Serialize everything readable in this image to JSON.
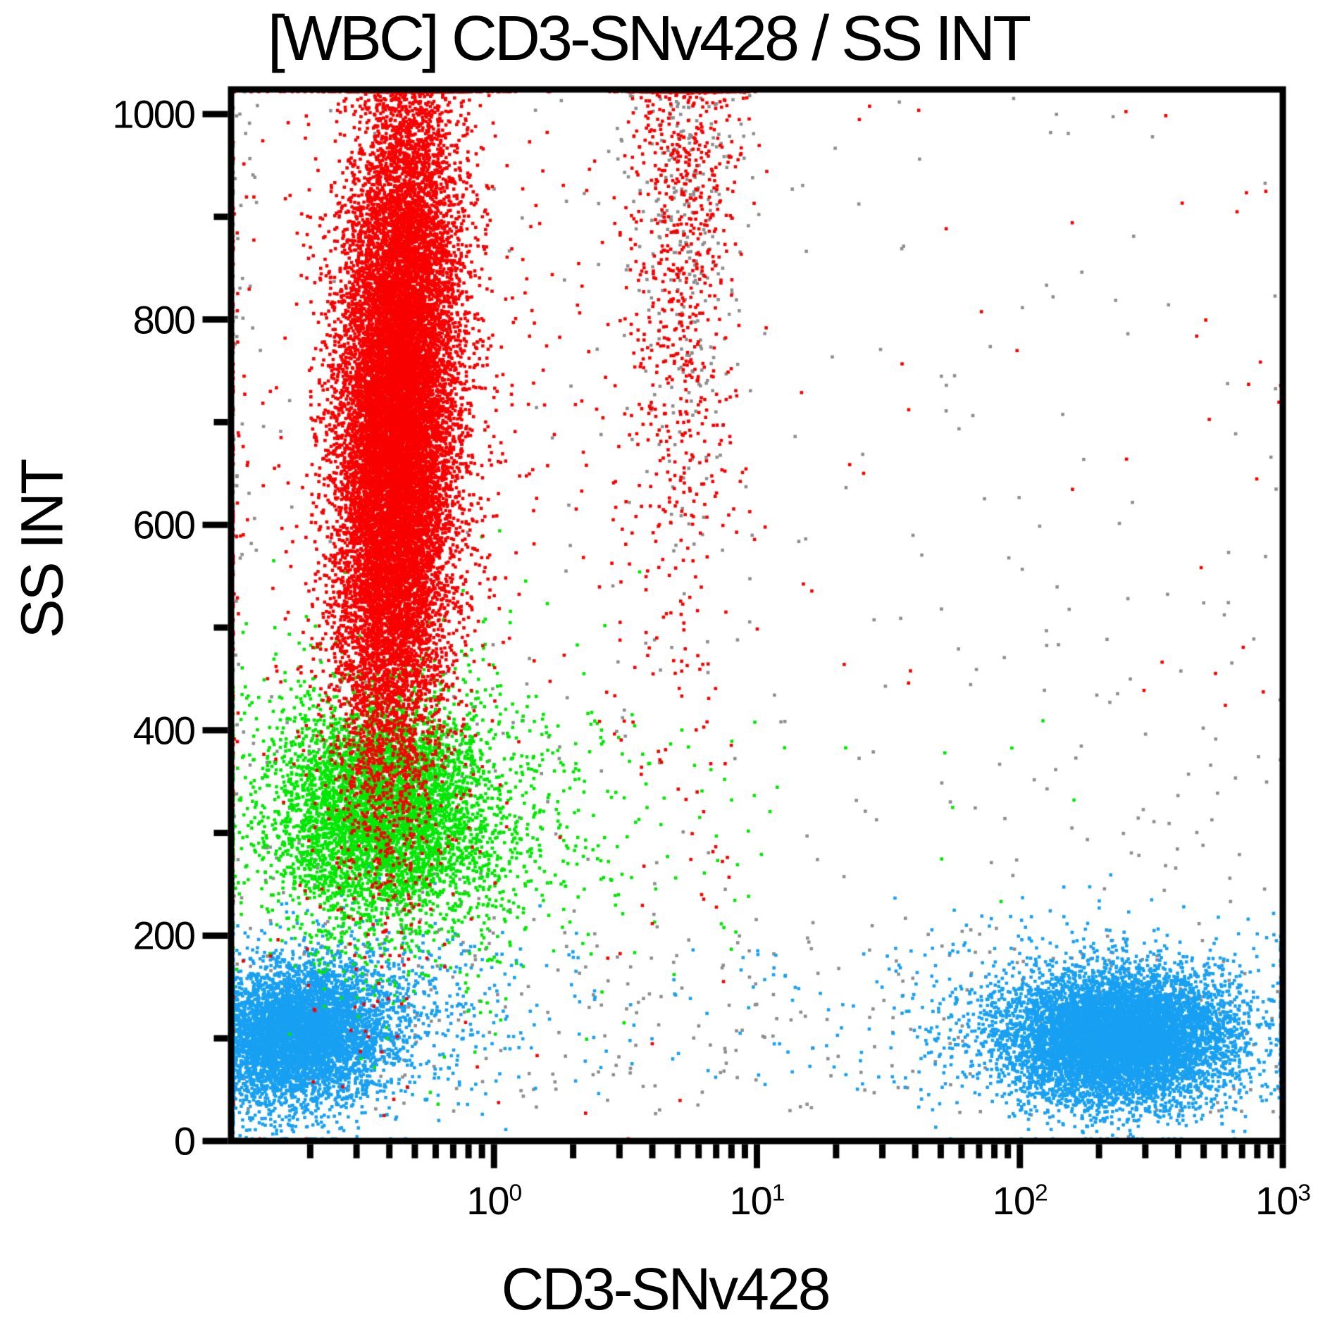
{
  "chart_data": {
    "type": "scatter",
    "title": "[WBC] CD3-SNv428 / SS INT",
    "xlabel": "CD3-SNv428",
    "ylabel": "SS INT",
    "x_scale": "log10",
    "x_range_log": [
      -1,
      3
    ],
    "y_range": [
      0,
      1024
    ],
    "grid": false,
    "legend": "none",
    "x_major_ticks": [
      {
        "log": 0,
        "base": "10",
        "exp": "0"
      },
      {
        "log": 1,
        "base": "10",
        "exp": "1"
      },
      {
        "log": 2,
        "base": "10",
        "exp": "2"
      },
      {
        "log": 3,
        "base": "10",
        "exp": "3"
      }
    ],
    "y_major_ticks": [
      {
        "value": 1000,
        "label": "1000"
      },
      {
        "value": 800,
        "label": "800"
      },
      {
        "value": 600,
        "label": "600"
      },
      {
        "value": 400,
        "label": "400"
      },
      {
        "value": 200,
        "label": "200"
      },
      {
        "value": 0,
        "label": "0"
      }
    ],
    "y_minor_tick_values": [
      100,
      300,
      500,
      700,
      900
    ],
    "colors": {
      "red": "#f80000",
      "green": "#00e800",
      "blue": "#18a0f2",
      "gray": "#8e8e8e"
    },
    "dot_size": 4.6,
    "populations": [
      {
        "name": "debris-gray-bottom-strip",
        "color": "gray",
        "kind": "uniform",
        "n": 300,
        "x_log": [
          -1.0,
          3.0
        ],
        "y": [
          25,
          210
        ]
      },
      {
        "name": "debris-gray-scatter",
        "color": "gray",
        "kind": "uniform",
        "n": 210,
        "x_log": [
          -1.0,
          3.0
        ],
        "y": [
          210,
          1020
        ]
      },
      {
        "name": "gray-left-edge-column",
        "color": "gray",
        "kind": "gauss",
        "n": 110,
        "cx": -1.02,
        "cy": 680,
        "sx": 0.05,
        "sy": 330,
        "rho": 0
      },
      {
        "name": "gray-right-trail",
        "color": "gray",
        "kind": "gauss",
        "n": 70,
        "cx": 2.45,
        "cy": 280,
        "sx": 0.28,
        "sy": 150,
        "rho": 0
      },
      {
        "name": "gray-in-monocytes",
        "color": "gray",
        "kind": "gauss",
        "n": 230,
        "cx": -0.4,
        "cy": 320,
        "sx": 0.26,
        "sy": 75,
        "rho": 0
      },
      {
        "name": "gray-upper-cd3dim",
        "color": "gray",
        "kind": "gauss",
        "n": 430,
        "cx": 0.73,
        "cy": 950,
        "sx": 0.105,
        "sy": 175,
        "rho": 0
      },
      {
        "name": "lymphocytes-cd3neg-core",
        "color": "blue",
        "kind": "gauss",
        "n": 5200,
        "cx": -0.74,
        "cy": 103,
        "sx": 0.165,
        "sy": 33,
        "rho": 0.1
      },
      {
        "name": "lymphocytes-cd3neg-halo",
        "color": "blue",
        "kind": "gauss",
        "n": 800,
        "cx": -0.6,
        "cy": 118,
        "sx": 0.3,
        "sy": 48,
        "rho": 0.1
      },
      {
        "name": "lymphocytes-mid-sparse",
        "color": "blue",
        "kind": "uniform",
        "n": 150,
        "x_log": [
          -0.5,
          1.95
        ],
        "y": [
          45,
          190
        ]
      },
      {
        "name": "lymphocytes-cd3pos-core",
        "color": "blue",
        "kind": "gauss",
        "n": 8000,
        "cx": 2.38,
        "cy": 100,
        "sx": 0.21,
        "sy": 31,
        "rho": 0
      },
      {
        "name": "lymphocytes-cd3pos-halo",
        "color": "blue",
        "kind": "gauss",
        "n": 1000,
        "cx": 2.34,
        "cy": 112,
        "sx": 0.34,
        "sy": 48,
        "rho": 0
      },
      {
        "name": "monocytes-core",
        "color": "green",
        "kind": "gauss",
        "n": 4600,
        "cx": -0.42,
        "cy": 320,
        "sx": 0.215,
        "sy": 57,
        "rho": 0
      },
      {
        "name": "monocytes-halo",
        "color": "green",
        "kind": "gauss",
        "n": 800,
        "cx": -0.3,
        "cy": 315,
        "sx": 0.4,
        "sy": 88,
        "rho": 0
      },
      {
        "name": "monocytes-right-sparse",
        "color": "green",
        "kind": "uniform",
        "n": 60,
        "x_log": [
          0.15,
          1.05
        ],
        "y": [
          205,
          430
        ]
      },
      {
        "name": "monocytes-outliers",
        "color": "green",
        "kind": "uniform",
        "n": 10,
        "x_log": [
          1.05,
          2.35
        ],
        "y": [
          230,
          420
        ]
      },
      {
        "name": "granulocytes-core",
        "color": "red",
        "kind": "gauss",
        "n": 15000,
        "cx": -0.37,
        "cy": 700,
        "sx": 0.105,
        "sy": 160,
        "rho": 0.18
      },
      {
        "name": "granulocytes-halo",
        "color": "red",
        "kind": "gauss",
        "n": 2800,
        "cx": -0.35,
        "cy": 700,
        "sx": 0.155,
        "sy": 205,
        "rho": 0.15
      },
      {
        "name": "granulocytes-outliers",
        "color": "red",
        "kind": "gauss",
        "n": 380,
        "cx": -0.28,
        "cy": 700,
        "sx": 0.4,
        "sy": 270,
        "rho": 0
      },
      {
        "name": "red-left-edge-column",
        "color": "red",
        "kind": "gauss",
        "n": 70,
        "cx": -1.02,
        "cy": 640,
        "sx": 0.04,
        "sy": 260,
        "rho": 0
      },
      {
        "name": "eosinophils-upper",
        "color": "red",
        "kind": "gauss",
        "n": 850,
        "cx": 0.72,
        "cy": 955,
        "sx": 0.1,
        "sy": 170,
        "rho": 0
      },
      {
        "name": "eosinophils-trail",
        "color": "red",
        "kind": "gauss",
        "n": 230,
        "cx": 0.7,
        "cy": 640,
        "sx": 0.14,
        "sy": 240,
        "rho": 0
      },
      {
        "name": "red-sparse-right",
        "color": "red",
        "kind": "uniform",
        "n": 40,
        "x_log": [
          1.1,
          3.0
        ],
        "y": [
          420,
          1010
        ]
      }
    ]
  }
}
